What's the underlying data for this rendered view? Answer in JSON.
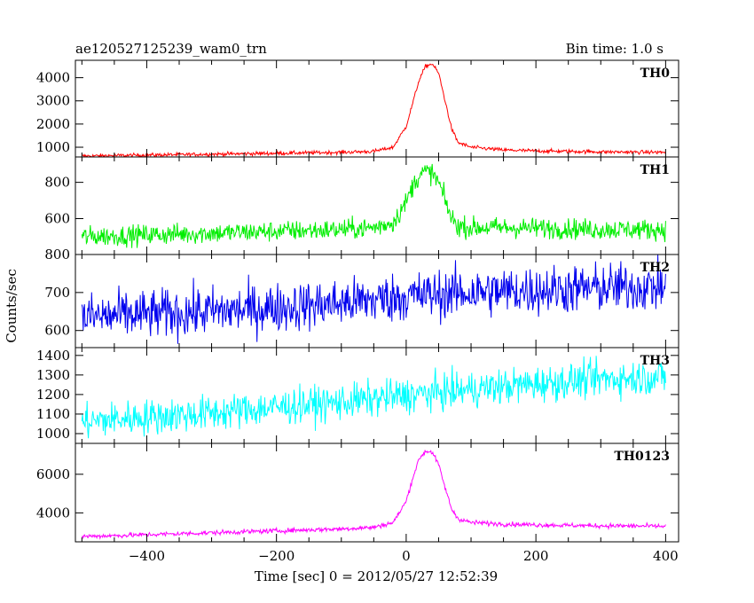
{
  "chart_data": {
    "type": "line",
    "title": "ae120527125239_wam0_trn",
    "bin_time_label": "Bin time: 1.0 s",
    "xlabel": "Time [sec] 0 = 2012/05/27 12:52:39",
    "ylabel": "Counts/sec",
    "xlim": [
      -510,
      420
    ],
    "x_ticks": [
      -400,
      -200,
      0,
      200,
      400
    ],
    "x_tick_labels": [
      "−400",
      "−200",
      "0",
      "200",
      "400"
    ],
    "grid": false,
    "panels": [
      {
        "name": "TH0",
        "color": "#ff0000",
        "ylim": [
          580,
          4750
        ],
        "y_ticks": [
          1000,
          2000,
          3000,
          4000
        ],
        "y_tick_labels": [
          "1000",
          "2000",
          "3000",
          "4000"
        ],
        "x": [
          -500,
          -450,
          -400,
          -350,
          -300,
          -250,
          -200,
          -150,
          -100,
          -50,
          -20,
          0,
          10,
          20,
          30,
          40,
          50,
          60,
          70,
          80,
          100,
          150,
          200,
          250,
          300,
          350,
          400
        ],
        "y": [
          620,
          640,
          660,
          680,
          700,
          720,
          740,
          760,
          780,
          820,
          1000,
          1900,
          2900,
          3900,
          4500,
          4600,
          4200,
          3000,
          1800,
          1200,
          1000,
          880,
          840,
          820,
          800,
          790,
          780
        ],
        "noise": 40
      },
      {
        "name": "TH1",
        "color": "#00ee00",
        "ylim": [
          402,
          940
        ],
        "y_ticks": [
          600,
          800
        ],
        "y_tick_labels": [
          "600",
          "800"
        ],
        "x": [
          -500,
          -450,
          -400,
          -350,
          -300,
          -250,
          -200,
          -150,
          -100,
          -50,
          -20,
          0,
          10,
          20,
          30,
          40,
          50,
          60,
          70,
          80,
          100,
          150,
          200,
          250,
          300,
          350,
          400
        ],
        "y": [
          500,
          505,
          510,
          515,
          520,
          525,
          530,
          535,
          540,
          550,
          580,
          690,
          780,
          840,
          860,
          850,
          800,
          700,
          600,
          560,
          550,
          550,
          548,
          545,
          540,
          540,
          540
        ],
        "noise": 28
      },
      {
        "name": "TH2",
        "color": "#0000ee",
        "ylim": [
          555,
          800
        ],
        "y_ticks": [
          600,
          700,
          800
        ],
        "y_tick_labels": [
          "600",
          "700",
          "800"
        ],
        "x": [
          -500,
          -400,
          -300,
          -200,
          -100,
          0,
          100,
          200,
          300,
          400
        ],
        "y": [
          635,
          642,
          650,
          660,
          672,
          690,
          700,
          706,
          712,
          715
        ],
        "noise": 32
      },
      {
        "name": "TH3",
        "color": "#00ffff",
        "ylim": [
          950,
          1440
        ],
        "y_ticks": [
          1000,
          1100,
          1200,
          1300,
          1400
        ],
        "y_tick_labels": [
          "1000",
          "1100",
          "1200",
          "1300",
          "1400"
        ],
        "x": [
          -500,
          -400,
          -300,
          -200,
          -100,
          0,
          100,
          200,
          300,
          400
        ],
        "y": [
          1060,
          1085,
          1105,
          1135,
          1160,
          1195,
          1225,
          1255,
          1280,
          1290
        ],
        "noise": 45
      },
      {
        "name": "TH0123",
        "color": "#ff00ff",
        "ylim": [
          2500,
          7600
        ],
        "y_ticks": [
          4000,
          6000
        ],
        "y_tick_labels": [
          "4000",
          "6000"
        ],
        "x": [
          -500,
          -450,
          -400,
          -350,
          -300,
          -250,
          -200,
          -150,
          -100,
          -50,
          -20,
          0,
          10,
          20,
          30,
          40,
          50,
          60,
          70,
          80,
          100,
          150,
          200,
          250,
          300,
          350,
          400
        ],
        "y": [
          2780,
          2820,
          2870,
          2920,
          2970,
          3020,
          3070,
          3120,
          3170,
          3250,
          3500,
          4600,
          5800,
          6800,
          7200,
          7150,
          6500,
          5300,
          4200,
          3700,
          3500,
          3420,
          3380,
          3350,
          3330,
          3320,
          3300
        ],
        "noise": 60
      }
    ]
  }
}
